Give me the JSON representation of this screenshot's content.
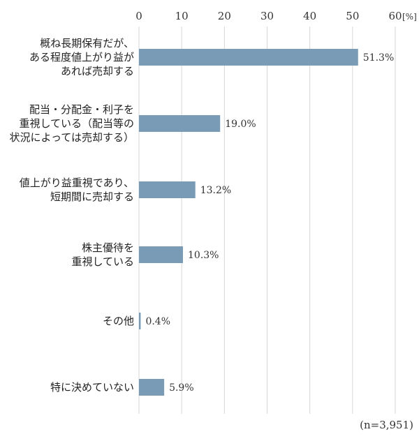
{
  "chart_data": {
    "type": "bar",
    "orientation": "horizontal",
    "unit": "[%]",
    "xlim": [
      0,
      60
    ],
    "ticks": [
      "0",
      "10",
      "20",
      "30",
      "40",
      "50",
      "60"
    ],
    "grid": true,
    "bar_color": "#7a9bb5",
    "categories": [
      {
        "lines": [
          "概ね長期保有だが、",
          "ある程度値上がり益が",
          "あれば売却する"
        ]
      },
      {
        "lines": [
          "配当・分配金・利子を",
          "重視している（配当等の",
          "状況によっては売却する）"
        ]
      },
      {
        "lines": [
          "値上がり益重視であり、",
          "短期間に売却する"
        ]
      },
      {
        "lines": [
          "株主優待を",
          "重視している"
        ]
      },
      {
        "lines": [
          "その他"
        ]
      },
      {
        "lines": [
          "特に決めていない"
        ]
      }
    ],
    "values": [
      51.3,
      19.0,
      13.2,
      10.3,
      0.4,
      5.9
    ],
    "value_labels": [
      "51.3%",
      "19.0%",
      "13.2%",
      "10.3%",
      "0.4%",
      "5.9%"
    ],
    "note": "(n=3,951)"
  }
}
